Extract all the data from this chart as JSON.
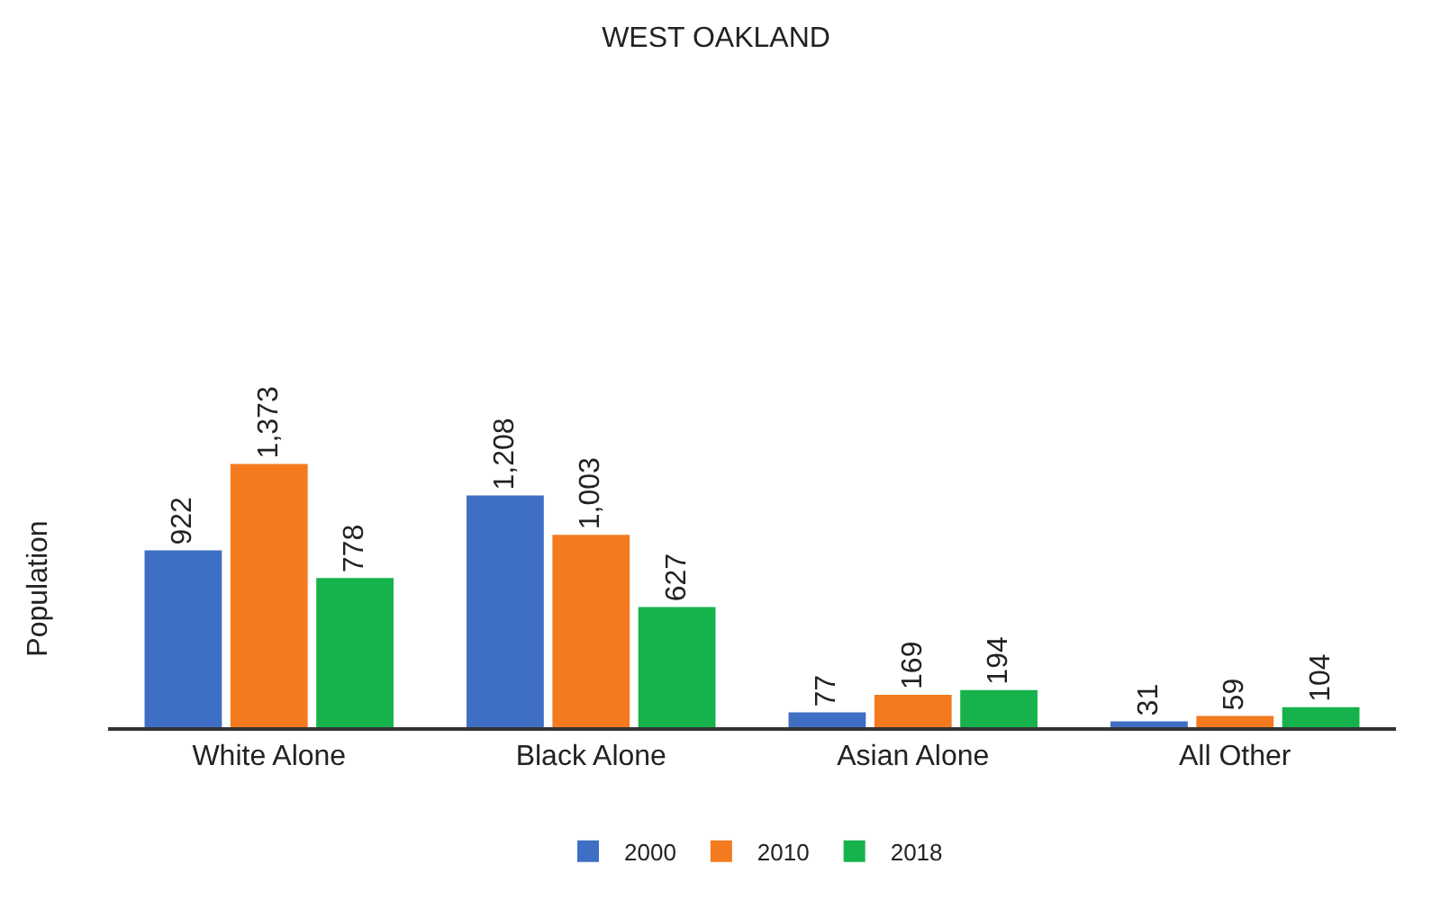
{
  "chart_data": {
    "type": "bar",
    "title": "WEST OAKLAND",
    "ylabel": "Population",
    "categories": [
      "White Alone",
      "Black Alone",
      "Asian Alone",
      "All Other"
    ],
    "grid": false,
    "legend": "bottom",
    "series": [
      {
        "name": "2000",
        "color": "#3e6fc4",
        "values": [
          922,
          1208,
          77,
          31
        ],
        "value_labels": [
          "922",
          "1,208",
          "77",
          "31"
        ]
      },
      {
        "name": "2010",
        "color": "#f47a20",
        "values": [
          1373,
          1003,
          169,
          59
        ],
        "value_labels": [
          "1,373",
          "1,003",
          "169",
          "59"
        ]
      },
      {
        "name": "2018",
        "color": "#16b24b",
        "values": [
          778,
          627,
          194,
          104
        ],
        "value_labels": [
          "778",
          "627",
          "194",
          "104"
        ]
      }
    ]
  }
}
